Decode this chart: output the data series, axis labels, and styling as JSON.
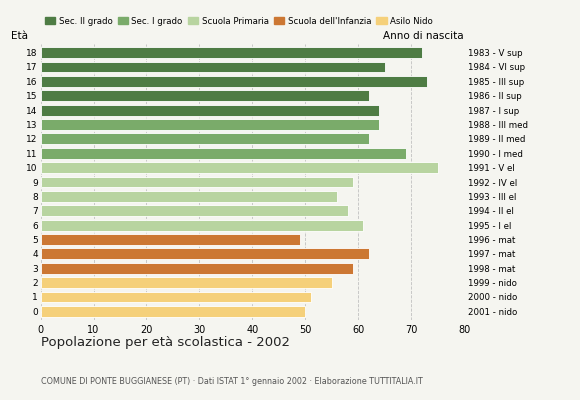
{
  "ages": [
    18,
    17,
    16,
    15,
    14,
    13,
    12,
    11,
    10,
    9,
    8,
    7,
    6,
    5,
    4,
    3,
    2,
    1,
    0
  ],
  "values": [
    72,
    65,
    73,
    62,
    64,
    64,
    62,
    69,
    75,
    59,
    56,
    58,
    61,
    49,
    62,
    59,
    55,
    51,
    50
  ],
  "right_labels": [
    "1983 - V sup",
    "1984 - VI sup",
    "1985 - III sup",
    "1986 - II sup",
    "1987 - I sup",
    "1988 - III med",
    "1989 - II med",
    "1990 - I med",
    "1991 - V el",
    "1992 - IV el",
    "1993 - III el",
    "1994 - II el",
    "1995 - I el",
    "1996 - mat",
    "1997 - mat",
    "1998 - mat",
    "1999 - nido",
    "2000 - nido",
    "2001 - nido"
  ],
  "bar_colors": [
    "#4e7c44",
    "#4e7c44",
    "#4e7c44",
    "#4e7c44",
    "#4e7c44",
    "#7aab6a",
    "#7aab6a",
    "#7aab6a",
    "#b8d4a0",
    "#b8d4a0",
    "#b8d4a0",
    "#b8d4a0",
    "#b8d4a0",
    "#cc7733",
    "#cc7733",
    "#cc7733",
    "#f5d07a",
    "#f5d07a",
    "#f5d07a"
  ],
  "legend_labels": [
    "Sec. II grado",
    "Sec. I grado",
    "Scuola Primaria",
    "Scuola dell'Infanzia",
    "Asilo Nido"
  ],
  "legend_colors": [
    "#4e7c44",
    "#7aab6a",
    "#b8d4a0",
    "#cc7733",
    "#f5d07a"
  ],
  "xlim": [
    0,
    80
  ],
  "xticks": [
    0,
    10,
    20,
    30,
    40,
    50,
    60,
    70,
    80
  ],
  "title": "Popolazione per età scolastica - 2002",
  "subtitle": "COMUNE DI PONTE BUGGIANESE (PT) · Dati ISTAT 1° gennaio 2002 · Elaborazione TUTTITALIA.IT",
  "ylabel": "Età",
  "anno_label": "Anno di nascita",
  "bar_height": 0.75,
  "background_color": "#f5f5f0",
  "grid_color": "#bbbbbb"
}
